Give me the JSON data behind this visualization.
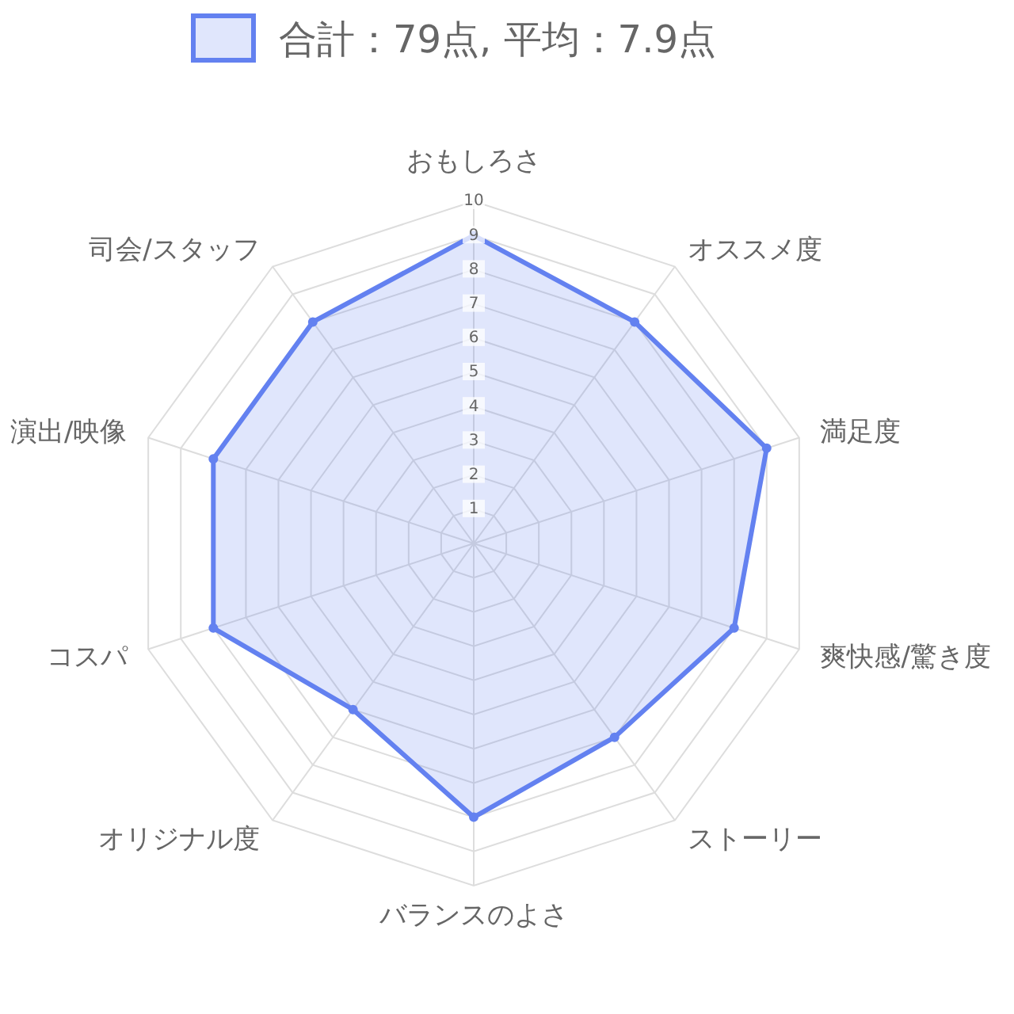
{
  "chart_data": {
    "type": "radar",
    "categories": [
      "おもしろさ",
      "オススメ度",
      "満足度",
      "爽快感/驚き度",
      "ストーリー",
      "バランスのよさ",
      "オリジナル度",
      "コスパ",
      "演出/映像",
      "司会/スタッフ"
    ],
    "series": [
      {
        "name": "合計：79点, 平均：7.9点",
        "color": "#6381f0",
        "values": [
          9,
          8,
          9,
          8,
          7,
          8,
          6,
          8,
          8,
          8
        ]
      }
    ],
    "ylim": [
      0,
      10
    ],
    "yticks": [
      1,
      2,
      3,
      4,
      5,
      6,
      7,
      8,
      9,
      10
    ],
    "grid": true,
    "legend": "top",
    "marker": "circle"
  }
}
